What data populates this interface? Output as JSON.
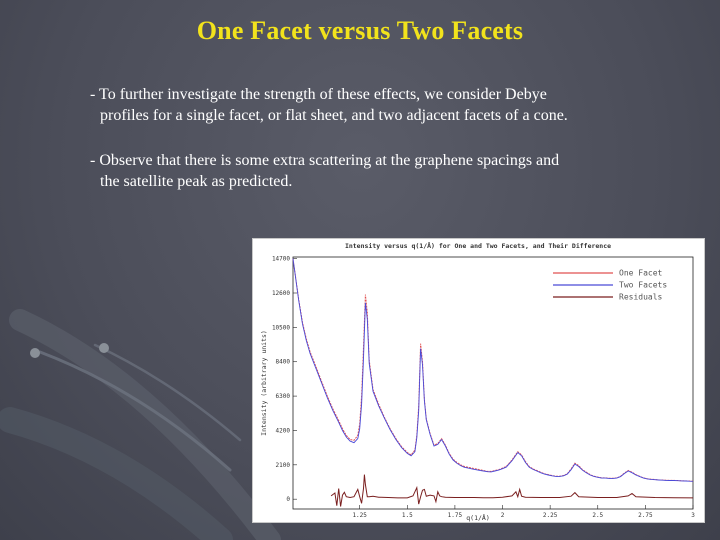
{
  "slide": {
    "title": "One Facet versus Two Facets",
    "bullets": [
      {
        "line1": "- To further investigate the strength of these effects, we consider Debye",
        "line2": "profiles for a single facet, or flat sheet, and two adjacent facets of a cone."
      },
      {
        "line1": "- Observe that there is some extra scattering at the graphene spacings and",
        "line2": "the satellite peak as predicted."
      }
    ]
  },
  "chart_data": {
    "type": "line",
    "title": "Intensity versus q(1/Å) for One and Two Facets, and Their Difference",
    "xlabel": "q(1/Å)",
    "ylabel": "Intensity (arbitrary units)",
    "xlim": [
      0.9,
      3.0
    ],
    "ylim": [
      -600,
      14800
    ],
    "x_ticks": [
      1.25,
      1.5,
      1.75,
      2.0,
      2.25,
      2.5,
      2.75,
      3.0
    ],
    "x_tick_labels": [
      "1.25",
      "1.5",
      "1.75",
      "2",
      "2.25",
      "2.5",
      "2.75",
      "3"
    ],
    "y_ticks": [
      0,
      2100,
      4200,
      6300,
      8400,
      10500,
      12600,
      14700
    ],
    "y_tick_labels": [
      "0",
      "2100",
      "4200",
      "6300",
      "8400",
      "10500",
      "12600",
      "14700"
    ],
    "grid": false,
    "legend_position": "top-right",
    "series": [
      {
        "name": "One Facet",
        "color": "#e05050",
        "x": [
          0.9,
          0.93,
          0.95,
          0.97,
          0.99,
          1.02,
          1.05,
          1.08,
          1.11,
          1.14,
          1.16,
          1.18,
          1.2,
          1.22,
          1.24,
          1.25,
          1.26,
          1.27,
          1.28,
          1.29,
          1.3,
          1.32,
          1.35,
          1.38,
          1.41,
          1.44,
          1.47,
          1.5,
          1.52,
          1.54,
          1.55,
          1.56,
          1.57,
          1.58,
          1.59,
          1.6,
          1.62,
          1.64,
          1.66,
          1.68,
          1.7,
          1.72,
          1.74,
          1.76,
          1.78,
          1.8,
          1.82,
          1.84,
          1.86,
          1.88,
          1.9,
          1.92,
          1.94,
          1.96,
          1.98,
          2.0,
          2.02,
          2.05,
          2.08,
          2.1,
          2.12,
          2.14,
          2.16,
          2.18,
          2.2,
          2.22,
          2.24,
          2.26,
          2.28,
          2.3,
          2.32,
          2.34,
          2.36,
          2.38,
          2.4,
          2.42,
          2.44,
          2.46,
          2.48,
          2.5,
          2.52,
          2.54,
          2.56,
          2.58,
          2.6,
          2.62,
          2.64,
          2.66,
          2.68,
          2.7,
          2.72,
          2.74,
          2.76,
          2.78,
          2.8,
          2.82,
          2.84,
          2.86,
          2.88,
          2.9,
          2.92,
          2.94,
          2.96,
          2.98,
          3.0
        ],
        "y": [
          14700,
          12200,
          10800,
          9800,
          9000,
          8100,
          7200,
          6300,
          5500,
          4800,
          4300,
          3900,
          3650,
          3600,
          3900,
          4600,
          6300,
          9300,
          12500,
          11400,
          8500,
          6700,
          5800,
          5000,
          4300,
          3700,
          3200,
          2850,
          2700,
          3000,
          3900,
          5700,
          9500,
          8400,
          6100,
          4900,
          4000,
          3300,
          3400,
          3700,
          3300,
          2800,
          2450,
          2250,
          2100,
          2000,
          1950,
          1900,
          1850,
          1800,
          1750,
          1700,
          1700,
          1750,
          1800,
          1900,
          2000,
          2400,
          2900,
          2700,
          2300,
          2000,
          1850,
          1750,
          1650,
          1550,
          1500,
          1450,
          1400,
          1400,
          1450,
          1550,
          1850,
          2200,
          2050,
          1800,
          1650,
          1500,
          1400,
          1350,
          1300,
          1300,
          1280,
          1280,
          1300,
          1400,
          1600,
          1750,
          1650,
          1500,
          1400,
          1300,
          1250,
          1220,
          1200,
          1180,
          1170,
          1160,
          1150,
          1150,
          1140,
          1130,
          1120,
          1110,
          1100
        ]
      },
      {
        "name": "Two Facets",
        "color": "#4a4ad8",
        "x": [
          0.9,
          0.93,
          0.95,
          0.97,
          0.99,
          1.02,
          1.05,
          1.08,
          1.11,
          1.14,
          1.16,
          1.18,
          1.2,
          1.22,
          1.24,
          1.25,
          1.26,
          1.27,
          1.28,
          1.29,
          1.3,
          1.32,
          1.35,
          1.38,
          1.41,
          1.44,
          1.47,
          1.5,
          1.52,
          1.54,
          1.55,
          1.56,
          1.57,
          1.58,
          1.59,
          1.6,
          1.62,
          1.64,
          1.66,
          1.68,
          1.7,
          1.72,
          1.74,
          1.76,
          1.78,
          1.8,
          1.82,
          1.84,
          1.86,
          1.88,
          1.9,
          1.92,
          1.94,
          1.96,
          1.98,
          2.0,
          2.02,
          2.05,
          2.08,
          2.1,
          2.12,
          2.14,
          2.16,
          2.18,
          2.2,
          2.22,
          2.24,
          2.26,
          2.28,
          2.3,
          2.32,
          2.34,
          2.36,
          2.38,
          2.4,
          2.42,
          2.44,
          2.46,
          2.48,
          2.5,
          2.52,
          2.54,
          2.56,
          2.58,
          2.6,
          2.62,
          2.64,
          2.66,
          2.68,
          2.7,
          2.72,
          2.74,
          2.76,
          2.78,
          2.8,
          2.82,
          2.84,
          2.86,
          2.88,
          2.9,
          2.92,
          2.94,
          2.96,
          2.98,
          3.0
        ],
        "y": [
          14700,
          12150,
          10700,
          9700,
          8900,
          8000,
          7100,
          6200,
          5400,
          4700,
          4200,
          3800,
          3550,
          3450,
          3700,
          4300,
          5800,
          8600,
          12000,
          11000,
          8300,
          6600,
          5700,
          4950,
          4250,
          3650,
          3150,
          2800,
          2650,
          2900,
          3750,
          5400,
          9200,
          8200,
          6000,
          4850,
          3950,
          3250,
          3350,
          3650,
          3250,
          2750,
          2400,
          2200,
          2050,
          1950,
          1900,
          1850,
          1800,
          1760,
          1720,
          1680,
          1670,
          1720,
          1780,
          1860,
          1960,
          2350,
          2850,
          2650,
          2250,
          1960,
          1820,
          1720,
          1620,
          1530,
          1480,
          1430,
          1390,
          1390,
          1430,
          1530,
          1800,
          2150,
          2000,
          1770,
          1620,
          1480,
          1390,
          1340,
          1290,
          1290,
          1270,
          1270,
          1290,
          1380,
          1570,
          1720,
          1620,
          1480,
          1380,
          1290,
          1240,
          1210,
          1190,
          1170,
          1160,
          1150,
          1140,
          1140,
          1130,
          1120,
          1110,
          1100,
          1090
        ]
      },
      {
        "name": "Residuals",
        "color": "#7a1f1f",
        "x": [
          1.1,
          1.12,
          1.13,
          1.14,
          1.15,
          1.16,
          1.17,
          1.18,
          1.2,
          1.22,
          1.24,
          1.25,
          1.26,
          1.27,
          1.275,
          1.28,
          1.29,
          1.3,
          1.32,
          1.35,
          1.4,
          1.45,
          1.5,
          1.53,
          1.55,
          1.56,
          1.57,
          1.58,
          1.59,
          1.6,
          1.62,
          1.64,
          1.65,
          1.66,
          1.67,
          1.68,
          1.7,
          1.75,
          1.8,
          1.85,
          1.9,
          1.95,
          2.0,
          2.05,
          2.07,
          2.08,
          2.09,
          2.1,
          2.12,
          2.2,
          2.3,
          2.36,
          2.38,
          2.4,
          2.5,
          2.6,
          2.66,
          2.68,
          2.7,
          2.8,
          2.9,
          3.0
        ],
        "y": [
          200,
          380,
          -400,
          650,
          -450,
          250,
          420,
          150,
          100,
          150,
          600,
          150,
          -250,
          650,
          1500,
          900,
          150,
          150,
          180,
          120,
          100,
          80,
          80,
          200,
          700,
          -300,
          150,
          550,
          600,
          180,
          250,
          200,
          -150,
          450,
          200,
          150,
          120,
          100,
          100,
          100,
          90,
          90,
          120,
          200,
          450,
          150,
          600,
          180,
          120,
          100,
          100,
          180,
          400,
          150,
          100,
          100,
          200,
          350,
          150,
          100,
          90,
          80
        ]
      }
    ]
  }
}
